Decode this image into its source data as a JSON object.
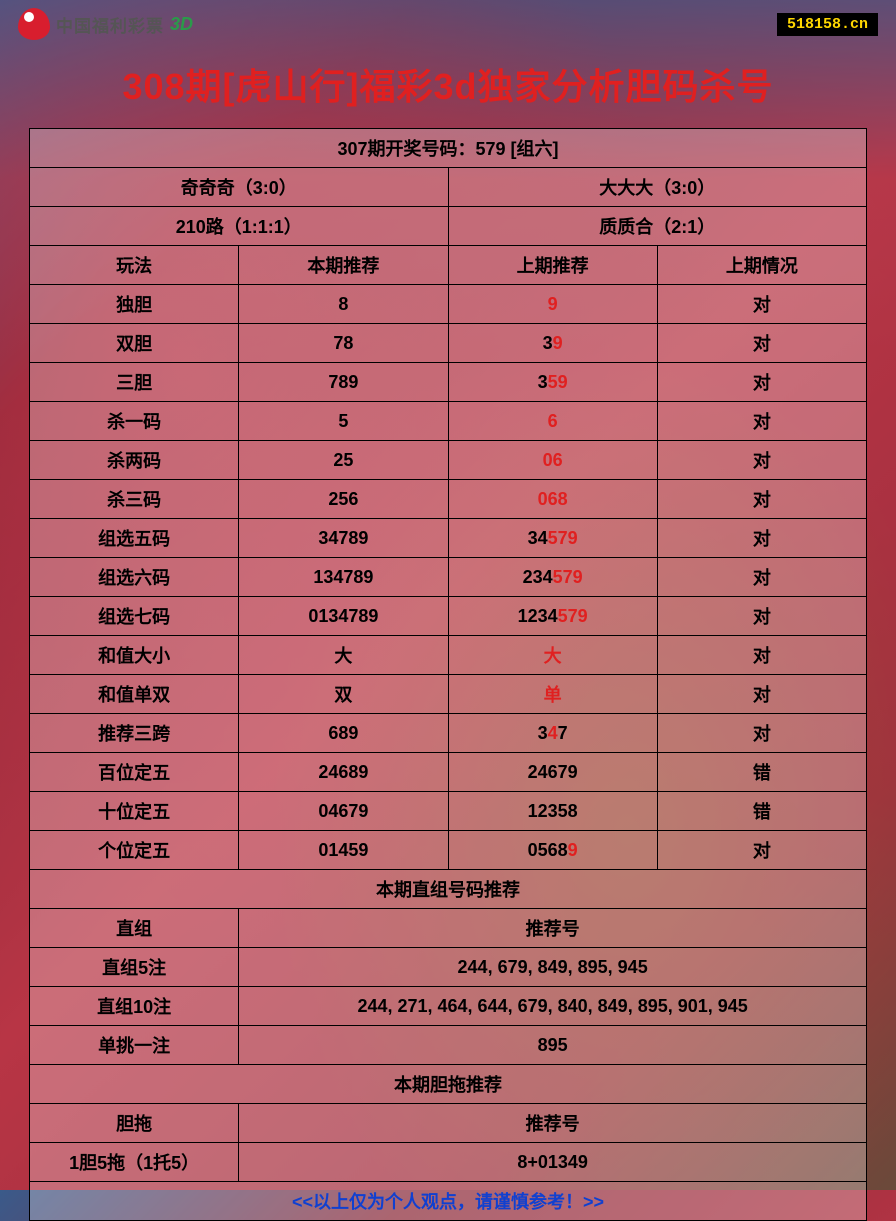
{
  "header": {
    "logo_text": "中国福利彩票",
    "logo_3d": "3D",
    "site_url": "518158.cn"
  },
  "title": "308期[虎山行]福彩3d独家分析胆码杀号",
  "draw_result": "307期开奖号码：579 [组六]",
  "summary": {
    "r1c1": "奇奇奇（3:0）",
    "r1c2": "大大大（3:0）",
    "r2c1": "210路（1:1:1）",
    "r2c2": "质质合（2:1）"
  },
  "headers": {
    "c1": "玩法",
    "c2": "本期推荐",
    "c3": "上期推荐",
    "c4": "上期情况"
  },
  "rows": [
    {
      "name": "独胆",
      "cur": "8",
      "prev": [
        {
          "t": "9",
          "red": true
        }
      ],
      "res": "对",
      "ok": true
    },
    {
      "name": "双胆",
      "cur": "78",
      "prev": [
        {
          "t": "3",
          "red": false
        },
        {
          "t": "9",
          "red": true
        }
      ],
      "res": "对",
      "ok": true
    },
    {
      "name": "三胆",
      "cur": "789",
      "prev": [
        {
          "t": "3",
          "red": false
        },
        {
          "t": "59",
          "red": true
        }
      ],
      "res": "对",
      "ok": true
    },
    {
      "name": "杀一码",
      "cur": "5",
      "prev": [
        {
          "t": "6",
          "red": true
        }
      ],
      "res": "对",
      "ok": true
    },
    {
      "name": "杀两码",
      "cur": "25",
      "prev": [
        {
          "t": "06",
          "red": true
        }
      ],
      "res": "对",
      "ok": true
    },
    {
      "name": "杀三码",
      "cur": "256",
      "prev": [
        {
          "t": "068",
          "red": true
        }
      ],
      "res": "对",
      "ok": true
    },
    {
      "name": "组选五码",
      "cur": "34789",
      "prev": [
        {
          "t": "34",
          "red": false
        },
        {
          "t": "579",
          "red": true
        }
      ],
      "res": "对",
      "ok": true
    },
    {
      "name": "组选六码",
      "cur": "134789",
      "prev": [
        {
          "t": "234",
          "red": false
        },
        {
          "t": "579",
          "red": true
        }
      ],
      "res": "对",
      "ok": true
    },
    {
      "name": "组选七码",
      "cur": "0134789",
      "prev": [
        {
          "t": "1234",
          "red": false
        },
        {
          "t": "579",
          "red": true
        }
      ],
      "res": "对",
      "ok": true
    },
    {
      "name": "和值大小",
      "cur": "大",
      "prev": [
        {
          "t": "大",
          "red": true
        }
      ],
      "res": "对",
      "ok": true
    },
    {
      "name": "和值单双",
      "cur": "双",
      "prev": [
        {
          "t": "单",
          "red": true
        }
      ],
      "res": "对",
      "ok": true
    },
    {
      "name": "推荐三跨",
      "cur": "689",
      "prev": [
        {
          "t": "3",
          "red": false
        },
        {
          "t": "4",
          "red": true
        },
        {
          "t": "7",
          "red": false
        }
      ],
      "res": "对",
      "ok": true
    },
    {
      "name": "百位定五",
      "cur": "24689",
      "prev": [
        {
          "t": "24679",
          "red": false
        }
      ],
      "res": "错",
      "ok": false
    },
    {
      "name": "十位定五",
      "cur": "04679",
      "prev": [
        {
          "t": "12358",
          "red": false
        }
      ],
      "res": "错",
      "ok": false
    },
    {
      "name": "个位定五",
      "cur": "01459",
      "prev": [
        {
          "t": "0568",
          "red": false
        },
        {
          "t": "9",
          "red": true
        }
      ],
      "res": "对",
      "ok": true
    }
  ],
  "section_zhizu": "本期直组号码推荐",
  "zhizu_header": {
    "c1": "直组",
    "c2": "推荐号"
  },
  "zhizu_rows": [
    {
      "name": "直组5注",
      "val": "244, 679, 849, 895, 945"
    },
    {
      "name": "直组10注",
      "val": "244, 271, 464, 644, 679, 840, 849, 895, 901, 945"
    },
    {
      "name": "单挑一注",
      "val": "895"
    }
  ],
  "section_dantuo": "本期胆拖推荐",
  "dantuo_header": {
    "c1": "胆拖",
    "c2": "推荐号"
  },
  "dantuo_rows": [
    {
      "name": "1胆5拖（1托5）",
      "val": "8+01349"
    }
  ],
  "footer": "<<以上仅为个人观点，请谨慎参考！>>"
}
